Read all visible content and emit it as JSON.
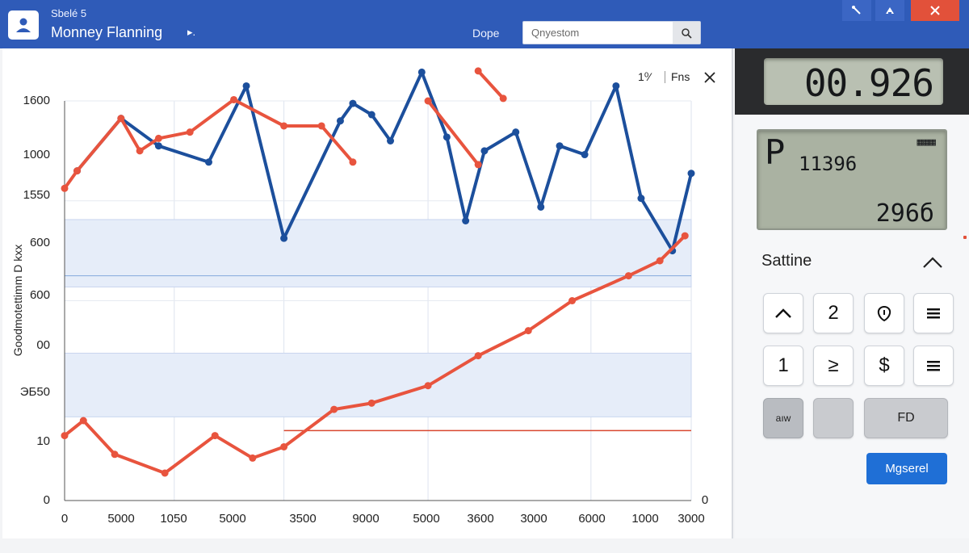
{
  "window": {
    "subtitle": "Sbelé 5",
    "title": "Monney Flanning",
    "title_arrow": "▸.",
    "menu_label": "Dope",
    "search_placeholder": "Qnyestom",
    "controls": [
      "tool",
      "minimize",
      "close"
    ]
  },
  "panel": {
    "control_a": "1⁰⁄",
    "control_b": "Fns"
  },
  "chart_data": {
    "type": "line",
    "ylabel": "Goodmotettimm D kxx",
    "y_tick_labels": [
      "1600",
      "1000",
      "1550",
      "600",
      "600",
      "00",
      "ЭБ50",
      "10",
      "0"
    ],
    "x_tick_labels": [
      "0",
      "5000",
      "1050",
      "5000",
      "3500",
      "9000",
      "5000",
      "3600",
      "3000",
      "6000",
      "1000",
      "3000"
    ],
    "right_axis_label": "0",
    "y_range": [
      0,
      1600
    ],
    "x_range": [
      0,
      100
    ],
    "bands": [
      {
        "name": "upper-band",
        "y_from": 855,
        "y_to": 1125
      },
      {
        "name": "lower-band",
        "y_from": 335,
        "y_to": 590
      }
    ],
    "reference_line": {
      "y": 900
    },
    "baseline": {
      "x_from": 35,
      "x_to": 100,
      "y": 280
    },
    "series": [
      {
        "name": "Blue series",
        "color": "#1c4f9c",
        "x": [
          2,
          9,
          15,
          23,
          29,
          35,
          44,
          46,
          49,
          52,
          57,
          61,
          64,
          67,
          72,
          76,
          79,
          83,
          88,
          92,
          97,
          100
        ],
        "y": [
          1320,
          1530,
          1420,
          1355,
          1660,
          1050,
          1520,
          1590,
          1545,
          1440,
          1715,
          1455,
          1120,
          1400,
          1475,
          1175,
          1420,
          1385,
          1660,
          1210,
          1000,
          1310
        ]
      },
      {
        "name": "Red series",
        "color": "#e8543e",
        "segments": [
          {
            "x": [
              0,
              2,
              9,
              12,
              15,
              20,
              27,
              35,
              41,
              46
            ],
            "y": [
              1250,
              1320,
              1530,
              1400,
              1450,
              1475,
              1605,
              1500,
              1500,
              1355
            ]
          },
          {
            "x": [
              58,
              66
            ],
            "y": [
              1600,
              1345
            ]
          },
          {
            "x": [
              66,
              70
            ],
            "y": [
              1720,
              1610
            ]
          }
        ]
      },
      {
        "name": "Rising red series",
        "color": "#e8543e",
        "x": [
          0,
          3,
          8,
          16,
          24,
          30,
          35,
          43,
          49,
          58,
          66,
          74,
          81,
          90,
          95,
          99
        ],
        "y": [
          260,
          320,
          185,
          110,
          260,
          170,
          215,
          365,
          390,
          460,
          580,
          680,
          800,
          900,
          960,
          1060
        ]
      }
    ]
  },
  "calculator": {
    "top_display": "00.926",
    "main_display": {
      "letter": "P",
      "value": "11396",
      "indicator": "▦▦▦",
      "bottom": "296б"
    },
    "section_label": "Sattine",
    "keys": {
      "row1": [
        "^",
        "2",
        "ɸ",
        "≡"
      ],
      "row2": [
        "1",
        "≥",
        "$",
        "≡"
      ],
      "row3": [
        "aıw",
        "",
        "FD"
      ]
    },
    "primary_button": "Mgserel"
  }
}
